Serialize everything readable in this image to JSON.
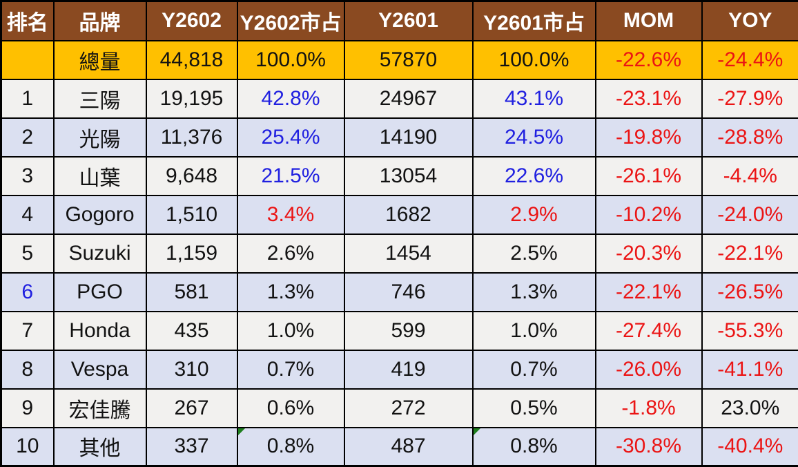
{
  "colors": {
    "header_bg": "#8A4A21",
    "header_text": "#FFFFFF",
    "total_row_bg": "#FFC000",
    "row_light": "#F2F1EF",
    "row_lavender": "#DBE0F1",
    "positive_share_blue": "#2020E0",
    "negative_red": "#EB1414",
    "default_text": "#121212",
    "corner_marker_green": "#1E7E1E",
    "grid_border": "#000000"
  },
  "chart_data": {
    "type": "table",
    "title": "",
    "columns": [
      "排名",
      "品牌",
      "Y2602",
      "Y2602市占",
      "Y2601",
      "Y2601市占",
      "MOM",
      "YOY"
    ],
    "rows": [
      {
        "total": true,
        "cells": [
          {
            "t": ""
          },
          {
            "t": "總量"
          },
          {
            "t": "44,818"
          },
          {
            "t": "100.0%"
          },
          {
            "t": "57870"
          },
          {
            "t": "100.0%"
          },
          {
            "t": "-22.6%",
            "c": "r"
          },
          {
            "t": "-24.4%",
            "c": "r"
          }
        ]
      },
      {
        "cells": [
          {
            "t": "1"
          },
          {
            "t": "三陽"
          },
          {
            "t": "19,195"
          },
          {
            "t": "42.8%",
            "c": "b"
          },
          {
            "t": "24967"
          },
          {
            "t": "43.1%",
            "c": "b"
          },
          {
            "t": "-23.1%",
            "c": "r"
          },
          {
            "t": "-27.9%",
            "c": "r"
          }
        ]
      },
      {
        "cells": [
          {
            "t": "2"
          },
          {
            "t": "光陽"
          },
          {
            "t": "11,376"
          },
          {
            "t": "25.4%",
            "c": "b"
          },
          {
            "t": "14190"
          },
          {
            "t": "24.5%",
            "c": "b"
          },
          {
            "t": "-19.8%",
            "c": "r"
          },
          {
            "t": "-28.8%",
            "c": "r"
          }
        ]
      },
      {
        "cells": [
          {
            "t": "3"
          },
          {
            "t": "山葉"
          },
          {
            "t": "9,648"
          },
          {
            "t": "21.5%",
            "c": "b"
          },
          {
            "t": "13054"
          },
          {
            "t": "22.6%",
            "c": "b"
          },
          {
            "t": "-26.1%",
            "c": "r"
          },
          {
            "t": "-4.4%",
            "c": "r"
          }
        ]
      },
      {
        "cells": [
          {
            "t": "4"
          },
          {
            "t": "Gogoro"
          },
          {
            "t": "1,510"
          },
          {
            "t": "3.4%",
            "c": "r"
          },
          {
            "t": "1682"
          },
          {
            "t": "2.9%",
            "c": "r"
          },
          {
            "t": "-10.2%",
            "c": "r"
          },
          {
            "t": "-24.0%",
            "c": "r"
          }
        ]
      },
      {
        "cells": [
          {
            "t": "5"
          },
          {
            "t": "Suzuki"
          },
          {
            "t": "1,159"
          },
          {
            "t": "2.6%"
          },
          {
            "t": "1454"
          },
          {
            "t": "2.5%"
          },
          {
            "t": "-20.3%",
            "c": "r"
          },
          {
            "t": "-22.1%",
            "c": "r"
          }
        ]
      },
      {
        "cells": [
          {
            "t": "6",
            "c": "b"
          },
          {
            "t": "PGO"
          },
          {
            "t": "581"
          },
          {
            "t": "1.3%"
          },
          {
            "t": "746"
          },
          {
            "t": "1.3%"
          },
          {
            "t": "-22.1%",
            "c": "r"
          },
          {
            "t": "-26.5%",
            "c": "r"
          }
        ]
      },
      {
        "cells": [
          {
            "t": "7"
          },
          {
            "t": "Honda"
          },
          {
            "t": "435"
          },
          {
            "t": "1.0%"
          },
          {
            "t": "599"
          },
          {
            "t": "1.0%"
          },
          {
            "t": "-27.4%",
            "c": "r"
          },
          {
            "t": "-55.3%",
            "c": "r"
          }
        ]
      },
      {
        "cells": [
          {
            "t": "8"
          },
          {
            "t": "Vespa"
          },
          {
            "t": "310"
          },
          {
            "t": "0.7%"
          },
          {
            "t": "419"
          },
          {
            "t": "0.7%"
          },
          {
            "t": "-26.0%",
            "c": "r"
          },
          {
            "t": "-41.1%",
            "c": "r"
          }
        ]
      },
      {
        "cells": [
          {
            "t": "9"
          },
          {
            "t": "宏佳騰"
          },
          {
            "t": "267"
          },
          {
            "t": "0.6%"
          },
          {
            "t": "272"
          },
          {
            "t": "0.5%"
          },
          {
            "t": "-1.8%",
            "c": "r"
          },
          {
            "t": "23.0%"
          }
        ]
      },
      {
        "cells": [
          {
            "t": "10"
          },
          {
            "t": "其他"
          },
          {
            "t": "337"
          },
          {
            "t": "0.8%",
            "tri": true
          },
          {
            "t": "487"
          },
          {
            "t": "0.8%",
            "tri": true
          },
          {
            "t": "-30.8%",
            "c": "r"
          },
          {
            "t": "-40.4%",
            "c": "r"
          }
        ]
      }
    ]
  }
}
